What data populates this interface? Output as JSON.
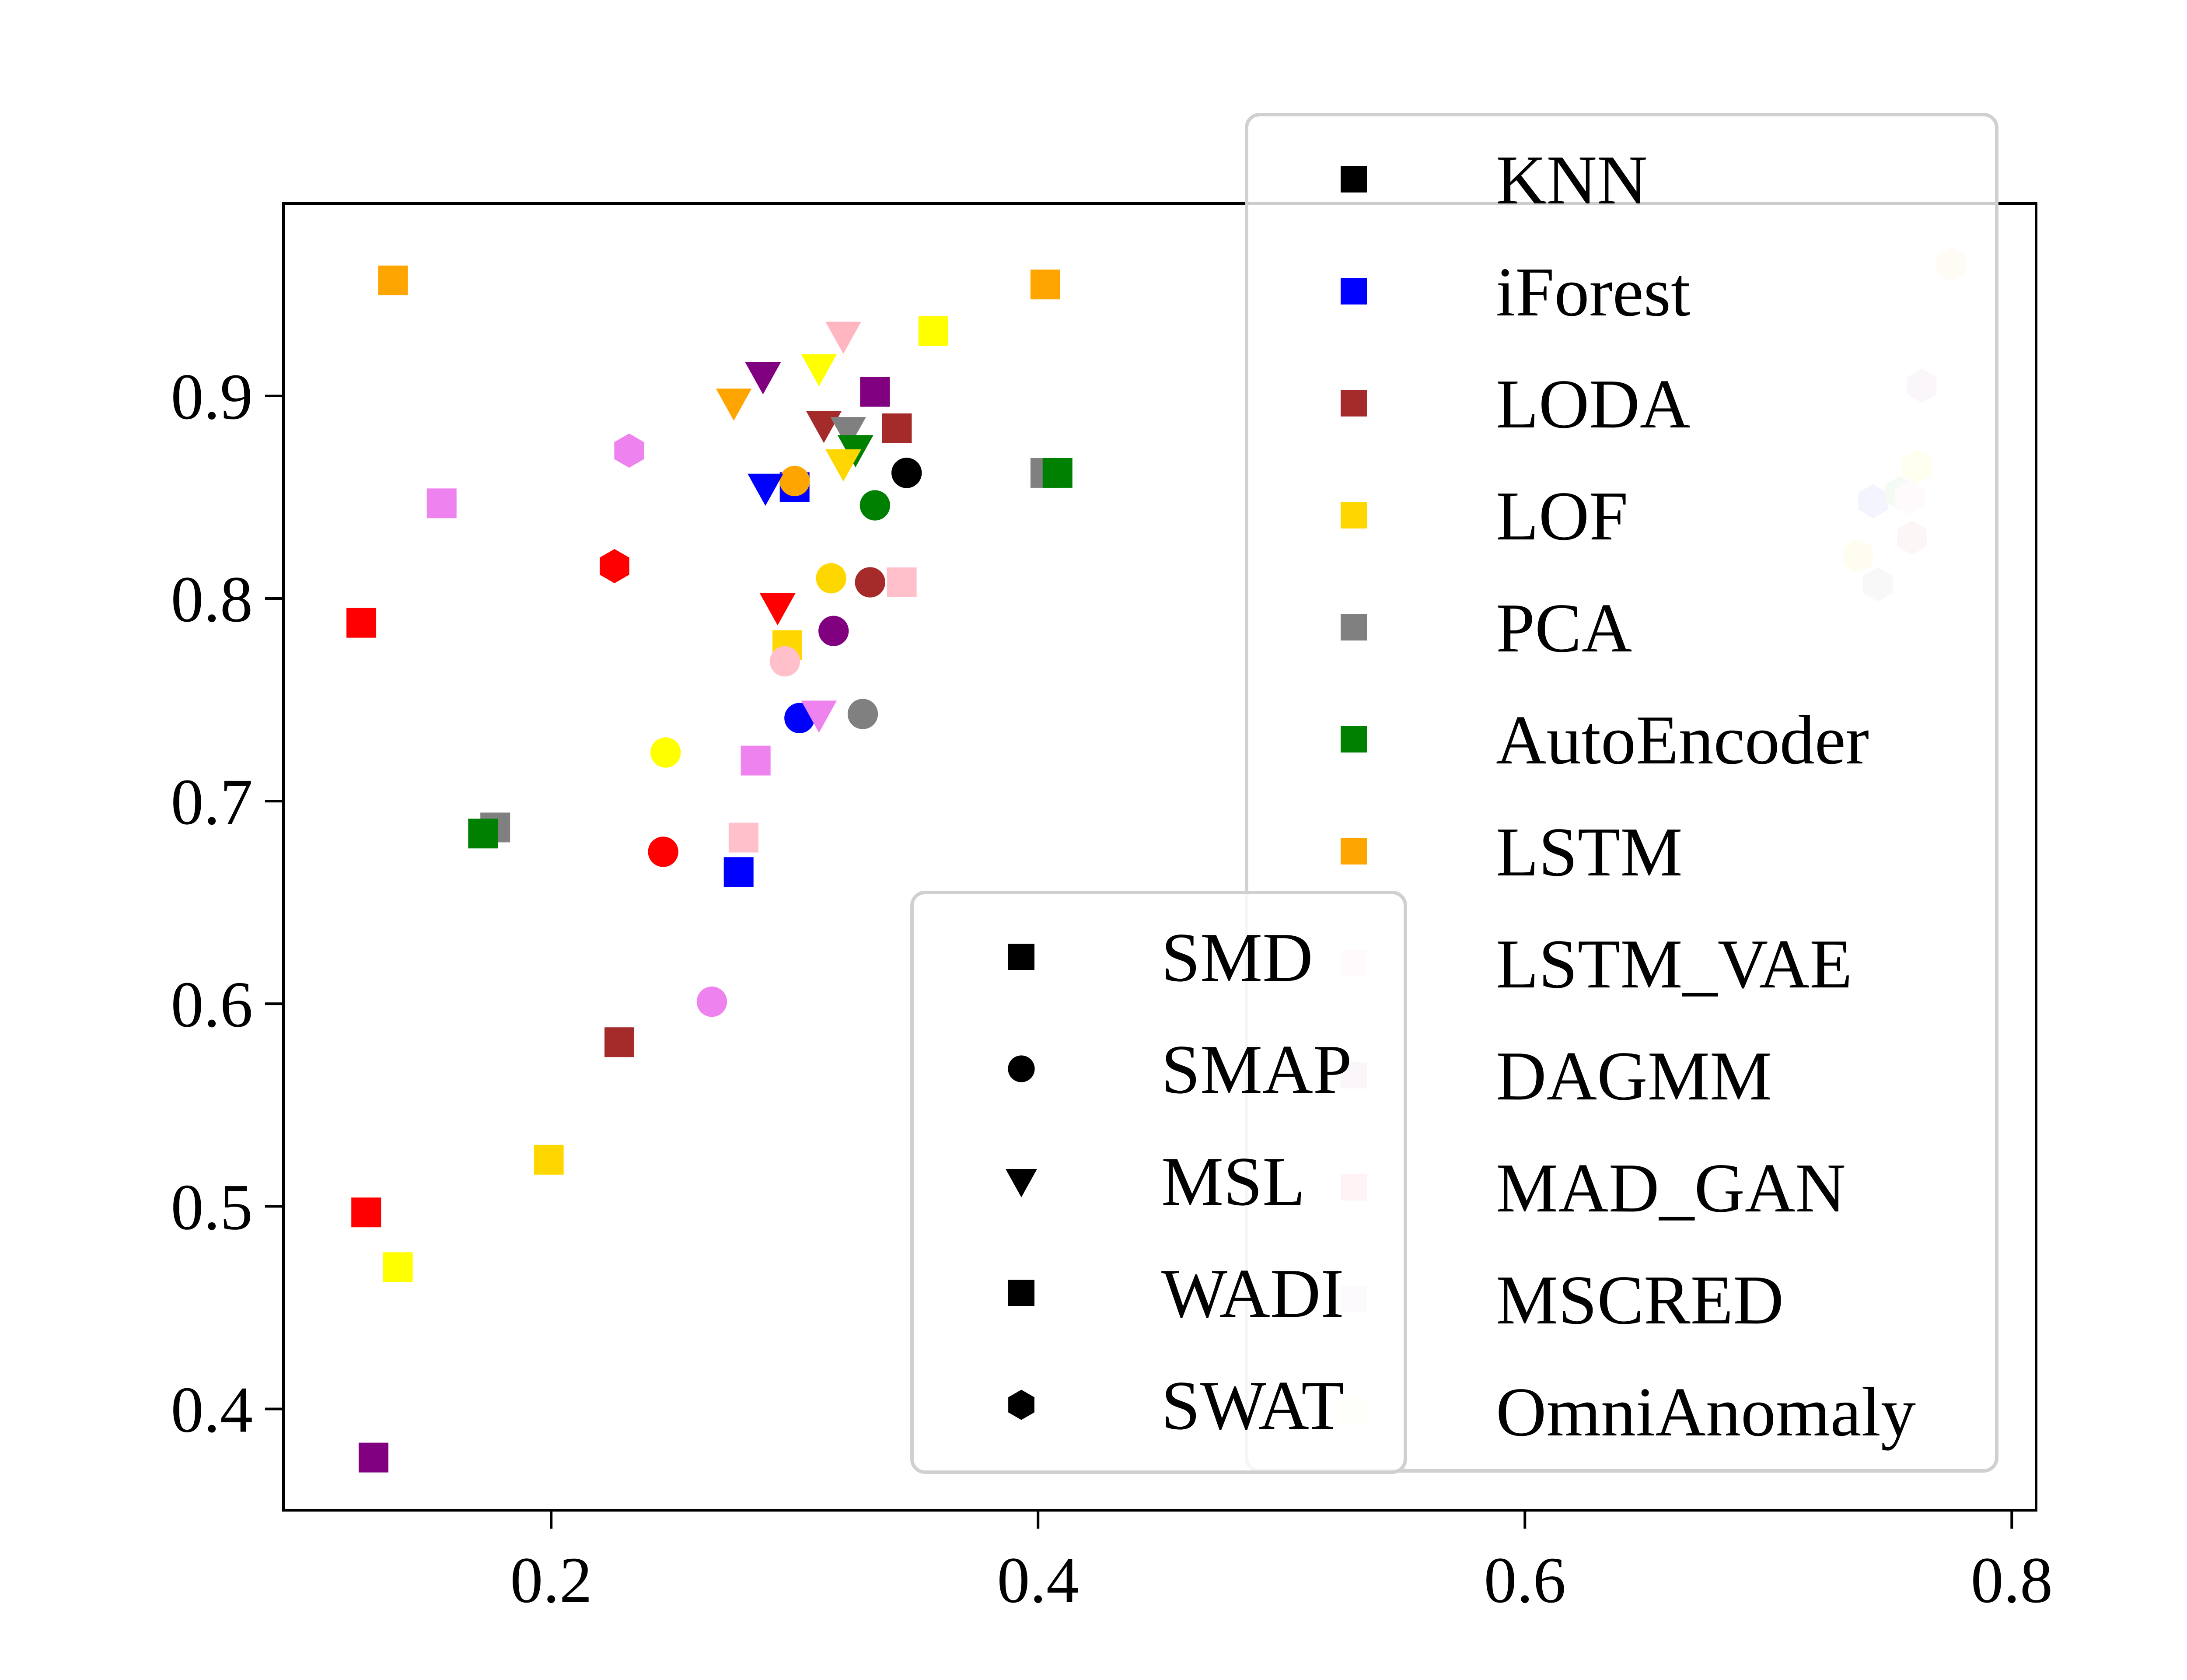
{
  "chart_data": {
    "type": "scatter",
    "title": "",
    "xlabel": "",
    "ylabel": "",
    "xlim": [
      0.09,
      0.81
    ],
    "ylim": [
      0.35,
      0.995
    ],
    "x_ticks": [
      {
        "value": 0.2,
        "label": "0.2"
      },
      {
        "value": 0.4,
        "label": "0.4"
      },
      {
        "value": 0.6,
        "label": "0.6"
      },
      {
        "value": 0.8,
        "label": "0.8"
      }
    ],
    "y_ticks": [
      {
        "value": 0.4,
        "label": "0.4"
      },
      {
        "value": 0.5,
        "label": "0.5"
      },
      {
        "value": 0.6,
        "label": "0.6"
      },
      {
        "value": 0.7,
        "label": "0.7"
      },
      {
        "value": 0.8,
        "label": "0.8"
      },
      {
        "value": 0.9,
        "label": "0.9"
      }
    ],
    "grid": false,
    "dataset_legend": [
      {
        "name": "SMD",
        "marker": "square"
      },
      {
        "name": "SMAP",
        "marker": "circle"
      },
      {
        "name": "MSL",
        "marker": "triangle-down"
      },
      {
        "name": "WADI",
        "marker": "square"
      },
      {
        "name": "SWAT",
        "marker": "hexagon"
      }
    ],
    "method_legend": [
      {
        "name": "KNN",
        "color": "#000000"
      },
      {
        "name": "iForest",
        "color": "#0000ff"
      },
      {
        "name": "LODA",
        "color": "#a52a2a"
      },
      {
        "name": "LOF",
        "color": "#ffd700"
      },
      {
        "name": "PCA",
        "color": "#808080"
      },
      {
        "name": "AutoEncoder",
        "color": "#008000"
      },
      {
        "name": "LSTM",
        "color": "#ffa500"
      },
      {
        "name": "LSTM_VAE",
        "color": "#ffe4ec"
      },
      {
        "name": "DAGMM",
        "color": "#e6d3e6"
      },
      {
        "name": "MAD_GAN",
        "color": "#ffc0cb"
      },
      {
        "name": "MSCRED",
        "color": "#f3e5f5"
      },
      {
        "name": "OmniAnomaly",
        "color": "#ffffe0"
      }
    ],
    "points": [
      {
        "x": 0.135,
        "y": 0.957,
        "marker": "square",
        "color": "#ffa500"
      },
      {
        "x": 0.403,
        "y": 0.955,
        "marker": "square",
        "color": "#ffa500"
      },
      {
        "x": 0.357,
        "y": 0.932,
        "marker": "square",
        "color": "#ffff00"
      },
      {
        "x": 0.333,
        "y": 0.902,
        "marker": "square",
        "color": "#800080"
      },
      {
        "x": 0.342,
        "y": 0.884,
        "marker": "square",
        "color": "#a52a2a"
      },
      {
        "x": 0.403,
        "y": 0.862,
        "marker": "square",
        "color": "#808080"
      },
      {
        "x": 0.408,
        "y": 0.862,
        "marker": "square",
        "color": "#008000"
      },
      {
        "x": 0.3,
        "y": 0.855,
        "marker": "square",
        "color": "#0000ff"
      },
      {
        "x": 0.155,
        "y": 0.847,
        "marker": "square",
        "color": "#ee82ee"
      },
      {
        "x": 0.122,
        "y": 0.788,
        "marker": "square",
        "color": "#ff0000"
      },
      {
        "x": 0.344,
        "y": 0.808,
        "marker": "square",
        "color": "#ffc0cb"
      },
      {
        "x": 0.297,
        "y": 0.777,
        "marker": "square",
        "color": "#ffd700"
      },
      {
        "x": 0.284,
        "y": 0.72,
        "marker": "square",
        "color": "#ee82ee"
      },
      {
        "x": 0.177,
        "y": 0.687,
        "marker": "square",
        "color": "#808080"
      },
      {
        "x": 0.172,
        "y": 0.684,
        "marker": "square",
        "color": "#008000"
      },
      {
        "x": 0.279,
        "y": 0.682,
        "marker": "square",
        "color": "#ffc0cb"
      },
      {
        "x": 0.277,
        "y": 0.665,
        "marker": "square",
        "color": "#0000ff"
      },
      {
        "x": 0.228,
        "y": 0.581,
        "marker": "square",
        "color": "#a52a2a"
      },
      {
        "x": 0.199,
        "y": 0.523,
        "marker": "square",
        "color": "#ffd700"
      },
      {
        "x": 0.124,
        "y": 0.497,
        "marker": "square",
        "color": "#ff0000"
      },
      {
        "x": 0.137,
        "y": 0.47,
        "marker": "square",
        "color": "#ffff00"
      },
      {
        "x": 0.127,
        "y": 0.376,
        "marker": "square",
        "color": "#800080"
      },
      {
        "x": 0.346,
        "y": 0.862,
        "marker": "circle",
        "color": "#000000"
      },
      {
        "x": 0.3,
        "y": 0.858,
        "marker": "circle",
        "color": "#ffa500"
      },
      {
        "x": 0.333,
        "y": 0.846,
        "marker": "circle",
        "color": "#008000"
      },
      {
        "x": 0.315,
        "y": 0.81,
        "marker": "circle",
        "color": "#ffd700"
      },
      {
        "x": 0.331,
        "y": 0.808,
        "marker": "circle",
        "color": "#a52a2a"
      },
      {
        "x": 0.316,
        "y": 0.784,
        "marker": "circle",
        "color": "#800080"
      },
      {
        "x": 0.296,
        "y": 0.769,
        "marker": "circle",
        "color": "#ffc0cb"
      },
      {
        "x": 0.328,
        "y": 0.743,
        "marker": "circle",
        "color": "#808080"
      },
      {
        "x": 0.302,
        "y": 0.741,
        "marker": "circle",
        "color": "#0000ff"
      },
      {
        "x": 0.247,
        "y": 0.724,
        "marker": "circle",
        "color": "#ffff00"
      },
      {
        "x": 0.246,
        "y": 0.675,
        "marker": "circle",
        "color": "#ff0000"
      },
      {
        "x": 0.266,
        "y": 0.601,
        "marker": "circle",
        "color": "#ee82ee"
      },
      {
        "x": 0.32,
        "y": 0.93,
        "marker": "triangle-down",
        "color": "#ffb6c1"
      },
      {
        "x": 0.31,
        "y": 0.914,
        "marker": "triangle-down",
        "color": "#ffff00"
      },
      {
        "x": 0.287,
        "y": 0.91,
        "marker": "triangle-down",
        "color": "#800080"
      },
      {
        "x": 0.275,
        "y": 0.897,
        "marker": "triangle-down",
        "color": "#ffa500"
      },
      {
        "x": 0.312,
        "y": 0.886,
        "marker": "triangle-down",
        "color": "#a52a2a"
      },
      {
        "x": 0.322,
        "y": 0.883,
        "marker": "triangle-down",
        "color": "#808080"
      },
      {
        "x": 0.325,
        "y": 0.874,
        "marker": "triangle-down",
        "color": "#008000"
      },
      {
        "x": 0.32,
        "y": 0.867,
        "marker": "triangle-down",
        "color": "#ffd700"
      },
      {
        "x": 0.288,
        "y": 0.855,
        "marker": "triangle-down",
        "color": "#0000ff"
      },
      {
        "x": 0.293,
        "y": 0.796,
        "marker": "triangle-down",
        "color": "#ff0000"
      },
      {
        "x": 0.31,
        "y": 0.743,
        "marker": "triangle-down",
        "color": "#ee82ee"
      },
      {
        "x": 0.232,
        "y": 0.873,
        "marker": "hexagon",
        "color": "#ee82ee"
      },
      {
        "x": 0.226,
        "y": 0.816,
        "marker": "hexagon",
        "color": "#ff0000"
      },
      {
        "x": 0.775,
        "y": 0.965,
        "marker": "hexagon",
        "color": "#ffebcd"
      },
      {
        "x": 0.763,
        "y": 0.905,
        "marker": "hexagon",
        "color": "#e6d3e6"
      },
      {
        "x": 0.761,
        "y": 0.865,
        "marker": "hexagon",
        "color": "#ffffb3"
      },
      {
        "x": 0.743,
        "y": 0.848,
        "marker": "hexagon",
        "color": "#c8c8ff"
      },
      {
        "x": 0.754,
        "y": 0.852,
        "marker": "hexagon",
        "color": "#c8e6c8"
      },
      {
        "x": 0.758,
        "y": 0.85,
        "marker": "hexagon",
        "color": "#ffe4ec"
      },
      {
        "x": 0.759,
        "y": 0.83,
        "marker": "hexagon",
        "color": "#f0d2d2"
      },
      {
        "x": 0.737,
        "y": 0.821,
        "marker": "hexagon",
        "color": "#fff0b3"
      },
      {
        "x": 0.745,
        "y": 0.807,
        "marker": "hexagon",
        "color": "#dcdcdc"
      }
    ]
  }
}
